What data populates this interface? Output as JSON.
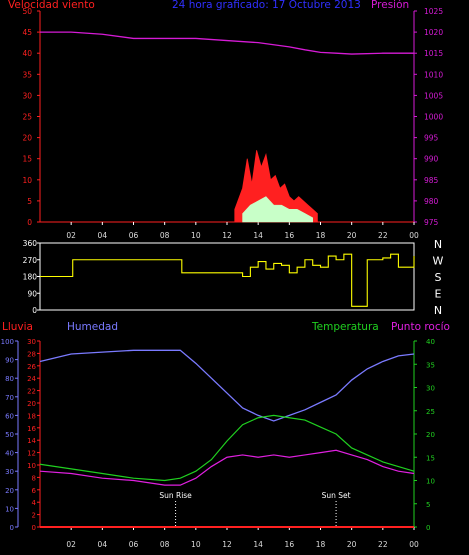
{
  "colors": {
    "wind": "#ff2020",
    "pressure": "#d61bd6",
    "title": "#3030ff",
    "gust": "#c8ffc8",
    "direction": "#ffff00",
    "rain": "#ff2020",
    "humidity": "#7a7aff",
    "temperature": "#20d020",
    "dewpoint": "#e020e0",
    "axis": "#ffffff",
    "tick": "#dddddd"
  },
  "top": {
    "left_label": "Velocidad viento",
    "center_label": "24 hora graficado: 17 Octubre 2013",
    "right_label": "Presión"
  },
  "bottom": {
    "rain_label": "Lluvia",
    "humidity_label": "Humedad",
    "temperature_label": "Temperatura",
    "dew_label": "Punto rocío",
    "sunrise_label": "Sun Rise",
    "sunset_label": "Sun Set"
  },
  "x_ticks": [
    "02",
    "04",
    "06",
    "08",
    "10",
    "12",
    "14",
    "16",
    "18",
    "20",
    "22",
    "00"
  ],
  "direction_letters": [
    "N",
    "W",
    "S",
    "E",
    "N"
  ],
  "chart_data": [
    {
      "type": "line",
      "x_hours": [
        0,
        2,
        4,
        6,
        8,
        10,
        12,
        14,
        16,
        17,
        18,
        19,
        20,
        22,
        24
      ],
      "wind_left_ticks": [
        "0",
        "5",
        "10",
        "15",
        "20",
        "25",
        "30",
        "35",
        "40",
        "45",
        "50"
      ],
      "pressure_right_ticks": [
        "975",
        "980",
        "985",
        "990",
        "995",
        "1000",
        "1005",
        "1010",
        "1015",
        "1020",
        "1025"
      ],
      "ylim_wind": [
        0,
        50
      ],
      "ylim_pressure": [
        975,
        1025
      ],
      "series": [
        {
          "name": "Presión",
          "x": [
            0,
            2,
            4,
            6,
            8,
            10,
            12,
            14,
            16,
            17,
            18,
            19,
            20,
            22,
            24
          ],
          "values": [
            1020,
            1020,
            1019.5,
            1018.5,
            1018.5,
            1018.5,
            1018,
            1017.5,
            1016.5,
            1015.8,
            1015.2,
            1015,
            1014.8,
            1015,
            1015
          ]
        },
        {
          "name": "Velocidad viento",
          "x": [
            12.5,
            13,
            13.3,
            13.6,
            13.9,
            14.2,
            14.5,
            14.8,
            15.1,
            15.4,
            15.7,
            16,
            16.3,
            16.6,
            16.9,
            17.2,
            17.5,
            17.8
          ],
          "values": [
            3,
            8,
            15,
            9,
            17,
            13,
            16,
            10,
            11,
            8,
            9,
            6,
            5,
            6,
            5,
            4,
            3,
            2
          ]
        },
        {
          "x": [
            13,
            13.5,
            14,
            14.5,
            15,
            15.5,
            16,
            16.5,
            17,
            17.5
          ],
          "values": [
            2,
            4,
            5,
            6,
            4,
            4,
            3,
            3,
            2,
            1
          ]
        }
      ]
    },
    {
      "type": "line",
      "ylim": [
        0,
        360
      ],
      "y_ticks": [
        "0",
        "90",
        "180",
        "270",
        "360"
      ],
      "series": [
        {
          "x": [
            0,
            1,
            2,
            2.1,
            5,
            7,
            9,
            9.1,
            12,
            13,
            13.5,
            14,
            14.5,
            15,
            15.5,
            16,
            16.5,
            17,
            17.5,
            18,
            18.5,
            19,
            19.5,
            20,
            21,
            22,
            22.5,
            23,
            24
          ],
          "values": [
            180,
            180,
            180,
            270,
            270,
            270,
            270,
            200,
            200,
            180,
            230,
            260,
            220,
            250,
            240,
            200,
            230,
            270,
            240,
            230,
            290,
            270,
            300,
            20,
            270,
            280,
            300,
            230,
            290
          ]
        }
      ]
    },
    {
      "type": "line",
      "humidity_ticks": [
        "0",
        "10",
        "20",
        "30",
        "40",
        "50",
        "60",
        "70",
        "80",
        "90",
        "100"
      ],
      "rain_ticks": [
        "0",
        "2",
        "4",
        "6",
        "8",
        "10",
        "12",
        "14",
        "16",
        "18",
        "20",
        "22",
        "24",
        "26",
        "28",
        "30"
      ],
      "temperature_ticks": [
        "0",
        "5",
        "10",
        "15",
        "20",
        "25",
        "30",
        "35",
        "40"
      ],
      "ylim_humidity": [
        0,
        100
      ],
      "ylim_rain": [
        0,
        30
      ],
      "ylim_temperature": [
        0,
        40
      ],
      "series": [
        {
          "name": "Humedad",
          "x": [
            0,
            1,
            2,
            4,
            6,
            8,
            9,
            10,
            11,
            12,
            13,
            14,
            15,
            16,
            17,
            18,
            19,
            20,
            21,
            22,
            23,
            24
          ],
          "values": [
            89,
            91,
            93,
            94,
            95,
            95,
            95,
            88,
            80,
            72,
            64,
            60,
            57,
            60,
            63,
            67,
            71,
            79,
            85,
            89,
            92,
            93
          ]
        },
        {
          "name": "Temperatura",
          "x": [
            0,
            2,
            4,
            6,
            8,
            9,
            10,
            11,
            12,
            13,
            14,
            15,
            16,
            17,
            18,
            19,
            20,
            21,
            22,
            23,
            24
          ],
          "values": [
            13.5,
            12.5,
            11.5,
            10.5,
            10,
            10.5,
            12,
            14.5,
            18.5,
            22,
            23.5,
            24,
            23.5,
            23,
            21.5,
            20,
            17,
            15.5,
            14,
            13,
            12
          ]
        },
        {
          "name": "Punto rocío",
          "x": [
            0,
            2,
            4,
            6,
            8,
            9,
            10,
            11,
            12,
            13,
            14,
            15,
            16,
            17,
            18,
            19,
            20,
            21,
            22,
            23,
            24
          ],
          "values": [
            12,
            11.5,
            10.5,
            10,
            9,
            9,
            10.5,
            13,
            15,
            15.5,
            15,
            15.5,
            15,
            15.5,
            16,
            16.5,
            15.5,
            14.5,
            13,
            12,
            11.5
          ]
        },
        {
          "name": "Lluvia",
          "x": [
            0,
            24
          ],
          "values": [
            0,
            0
          ]
        }
      ],
      "sunrise_hour": 8.7,
      "sunset_hour": 19
    }
  ]
}
